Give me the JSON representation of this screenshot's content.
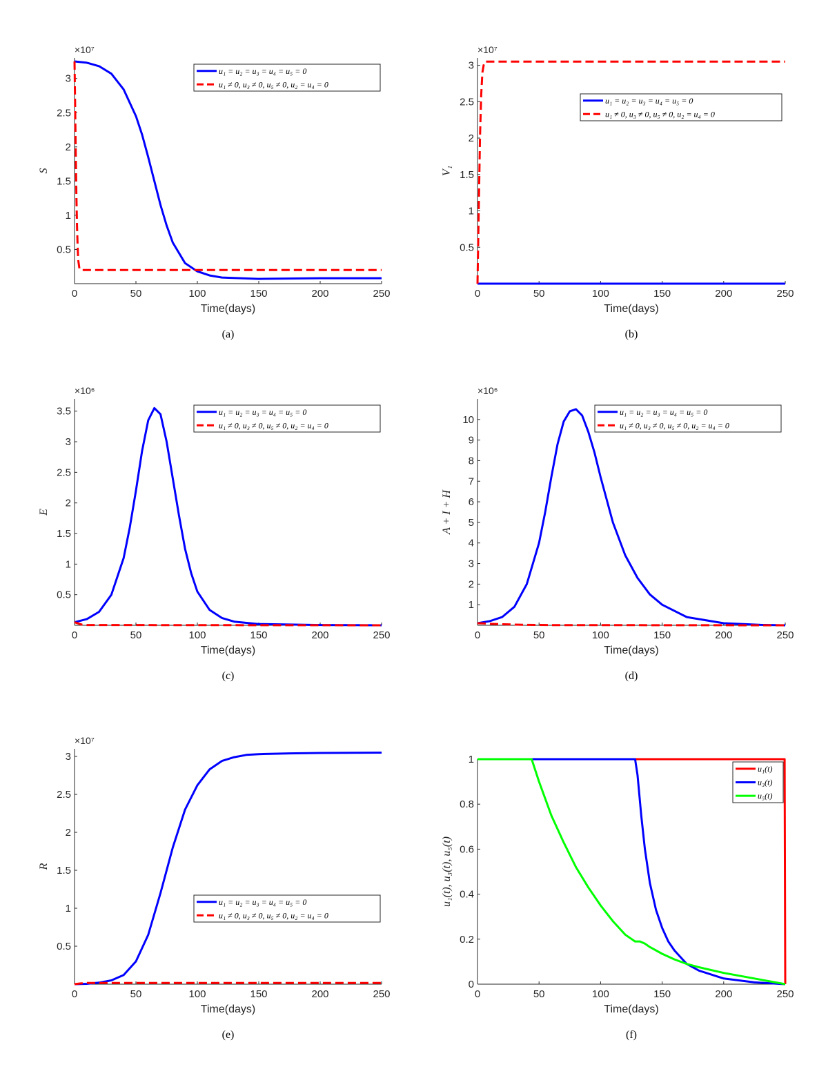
{
  "figure_title": "",
  "chart_data": [
    {
      "id": "a",
      "type": "line",
      "caption": "(a)",
      "xlabel": "Time(days)",
      "ylabel": "S",
      "yexponent": "×10⁷",
      "xlim": [
        0,
        250
      ],
      "ylim": [
        0,
        3.3
      ],
      "grid": false,
      "legend_position": "top-right",
      "xticks": [
        "0",
        "50",
        "100",
        "150",
        "200",
        "250"
      ],
      "yticks": [
        "0.5",
        "1",
        "1.5",
        "2",
        "2.5",
        "3"
      ],
      "series": [
        {
          "name": "u₁ = u₂ = u₃ = u₄ = u₅ = 0",
          "color": "#0000ff",
          "style": "solid",
          "x": [
            0,
            10,
            20,
            30,
            40,
            50,
            55,
            60,
            65,
            70,
            75,
            80,
            90,
            100,
            110,
            120,
            150,
            200,
            250
          ],
          "y": [
            3.25,
            3.23,
            3.18,
            3.07,
            2.84,
            2.45,
            2.18,
            1.85,
            1.5,
            1.15,
            0.85,
            0.6,
            0.3,
            0.18,
            0.12,
            0.09,
            0.07,
            0.08,
            0.08
          ]
        },
        {
          "name": "u₁ ≠ 0, u₃ ≠ 0, u₅ ≠ 0, u₂ = u₄ = 0",
          "color": "#ff0000",
          "style": "dashed",
          "x": [
            0,
            0.5,
            1,
            1.5,
            2,
            2.5,
            3,
            4,
            5,
            250
          ],
          "y": [
            3.25,
            2.6,
            1.9,
            1.3,
            0.85,
            0.55,
            0.35,
            0.22,
            0.2,
            0.2
          ]
        }
      ]
    },
    {
      "id": "b",
      "type": "line",
      "caption": "(b)",
      "xlabel": "Time(days)",
      "ylabel": "V₁",
      "yexponent": "×10⁷",
      "xlim": [
        0,
        250
      ],
      "ylim": [
        0,
        3.1
      ],
      "grid": false,
      "legend_position": "upper-right",
      "xticks": [
        "0",
        "50",
        "100",
        "150",
        "200",
        "250"
      ],
      "yticks": [
        "0.5",
        "1",
        "1.5",
        "2",
        "2.5",
        "3"
      ],
      "series": [
        {
          "name": "u₁ = u₂ = u₃ = u₄ = u₅ = 0",
          "color": "#0000ff",
          "style": "solid",
          "x": [
            0,
            250
          ],
          "y": [
            0,
            0
          ]
        },
        {
          "name": "u₁ ≠ 0, u₃ ≠ 0, u₅ ≠ 0, u₂ = u₄ = 0",
          "color": "#ff0000",
          "style": "dashed",
          "x": [
            0,
            1,
            2,
            3,
            4,
            5,
            6,
            250
          ],
          "y": [
            0,
            1.0,
            2.0,
            2.6,
            2.9,
            3.0,
            3.05,
            3.05
          ]
        }
      ]
    },
    {
      "id": "c",
      "type": "line",
      "caption": "(c)",
      "xlabel": "Time(days)",
      "ylabel": "E",
      "yexponent": "×10⁶",
      "xlim": [
        0,
        250
      ],
      "ylim": [
        0,
        3.7
      ],
      "grid": false,
      "legend_position": "top-right",
      "xticks": [
        "0",
        "50",
        "100",
        "150",
        "200",
        "250"
      ],
      "yticks": [
        "0.5",
        "1",
        "1.5",
        "2",
        "2.5",
        "3",
        "3.5"
      ],
      "series": [
        {
          "name": "u₁ = u₂ = u₃ = u₄ = u₅ = 0",
          "color": "#0000ff",
          "style": "solid",
          "x": [
            0,
            10,
            20,
            30,
            40,
            45,
            50,
            55,
            60,
            65,
            70,
            75,
            80,
            85,
            90,
            95,
            100,
            110,
            120,
            130,
            150,
            200,
            250
          ],
          "y": [
            0.05,
            0.1,
            0.22,
            0.5,
            1.1,
            1.6,
            2.2,
            2.85,
            3.35,
            3.55,
            3.45,
            3.0,
            2.4,
            1.8,
            1.25,
            0.85,
            0.55,
            0.25,
            0.12,
            0.06,
            0.02,
            0.005,
            0
          ]
        },
        {
          "name": "u₁ ≠ 0, u₃ ≠ 0, u₅ ≠ 0, u₂ = u₄ = 0",
          "color": "#ff0000",
          "style": "dashed",
          "x": [
            0,
            3,
            6,
            10,
            250
          ],
          "y": [
            0.05,
            0.03,
            0.01,
            0.005,
            0
          ]
        }
      ]
    },
    {
      "id": "d",
      "type": "line",
      "caption": "(d)",
      "xlabel": "Time(days)",
      "ylabel": "A + I + H",
      "yexponent": "×10⁶",
      "xlim": [
        0,
        250
      ],
      "ylim": [
        0,
        11
      ],
      "grid": false,
      "legend_position": "top-right",
      "xticks": [
        "0",
        "50",
        "100",
        "150",
        "200",
        "250"
      ],
      "yticks": [
        "1",
        "2",
        "3",
        "4",
        "5",
        "6",
        "7",
        "8",
        "9",
        "10"
      ],
      "series": [
        {
          "name": "u₁ = u₂ = u₃ = u₄ = u₅ = 0",
          "color": "#0000ff",
          "style": "solid",
          "x": [
            0,
            10,
            20,
            30,
            40,
            50,
            55,
            60,
            65,
            70,
            75,
            80,
            85,
            90,
            95,
            100,
            110,
            120,
            130,
            140,
            150,
            170,
            200,
            230,
            250
          ],
          "y": [
            0.1,
            0.2,
            0.4,
            0.9,
            2.0,
            4.0,
            5.5,
            7.2,
            8.8,
            9.9,
            10.4,
            10.5,
            10.2,
            9.4,
            8.4,
            7.2,
            5.0,
            3.4,
            2.3,
            1.5,
            1.0,
            0.4,
            0.1,
            0.02,
            0
          ]
        },
        {
          "name": "u₁ ≠ 0, u₃ ≠ 0, u₅ ≠ 0, u₂ = u₄ = 0",
          "color": "#ff0000",
          "style": "dashed",
          "x": [
            0,
            5,
            10,
            20,
            40,
            60,
            250
          ],
          "y": [
            0.1,
            0.09,
            0.07,
            0.05,
            0.02,
            0.01,
            0
          ]
        }
      ]
    },
    {
      "id": "e",
      "type": "line",
      "caption": "(e)",
      "xlabel": "Time(days)",
      "ylabel": "R",
      "yexponent": "×10⁷",
      "xlim": [
        0,
        250
      ],
      "ylim": [
        0,
        3.1
      ],
      "grid": false,
      "legend_position": "lower-right",
      "xticks": [
        "0",
        "50",
        "100",
        "150",
        "200",
        "250"
      ],
      "yticks": [
        "0.5",
        "1",
        "1.5",
        "2",
        "2.5",
        "3"
      ],
      "series": [
        {
          "name": "u₁ = u₂ = u₃ = u₄ = u₅ = 0",
          "color": "#0000ff",
          "style": "solid",
          "x": [
            0,
            10,
            20,
            30,
            40,
            50,
            60,
            70,
            80,
            90,
            100,
            110,
            120,
            130,
            140,
            150,
            175,
            200,
            250
          ],
          "y": [
            0,
            0.005,
            0.02,
            0.05,
            0.12,
            0.3,
            0.65,
            1.2,
            1.8,
            2.3,
            2.62,
            2.83,
            2.94,
            2.99,
            3.02,
            3.03,
            3.04,
            3.045,
            3.05
          ]
        },
        {
          "name": "u₁ ≠ 0, u₃ ≠ 0, u₅ ≠ 0, u₂ = u₄ = 0",
          "color": "#ff0000",
          "style": "dashed",
          "x": [
            0,
            5,
            10,
            250
          ],
          "y": [
            0,
            0.01,
            0.015,
            0.015
          ]
        }
      ]
    },
    {
      "id": "f",
      "type": "line",
      "caption": "(f)",
      "xlabel": "Time(days)",
      "ylabel": "u₁(t), u₃(t), u₅(t)",
      "yexponent": "",
      "xlim": [
        0,
        250
      ],
      "ylim": [
        0,
        1
      ],
      "grid": false,
      "legend_position": "top-right",
      "xticks": [
        "0",
        "50",
        "100",
        "150",
        "200",
        "250"
      ],
      "yticks": [
        "0",
        "0.2",
        "0.4",
        "0.6",
        "0.8",
        "1"
      ],
      "series": [
        {
          "name": "u₁(t)",
          "color": "#ff0000",
          "style": "solid",
          "x": [
            0,
            249.5,
            250
          ],
          "y": [
            1,
            1,
            0
          ]
        },
        {
          "name": "u₃(t)",
          "color": "#0000ff",
          "style": "solid",
          "x": [
            0,
            128,
            130,
            133,
            136,
            140,
            145,
            150,
            155,
            160,
            170,
            180,
            200,
            225,
            250
          ],
          "y": [
            1,
            1,
            0.93,
            0.75,
            0.6,
            0.45,
            0.33,
            0.25,
            0.19,
            0.15,
            0.09,
            0.06,
            0.025,
            0.008,
            0
          ]
        },
        {
          "name": "u₅(t)",
          "color": "#00ff00",
          "style": "solid",
          "x": [
            0,
            44,
            50,
            60,
            70,
            80,
            90,
            100,
            110,
            120,
            128,
            132,
            136,
            140,
            150,
            160,
            170,
            180,
            200,
            225,
            250
          ],
          "y": [
            1,
            1,
            0.9,
            0.75,
            0.63,
            0.52,
            0.43,
            0.35,
            0.28,
            0.22,
            0.19,
            0.19,
            0.18,
            0.165,
            0.135,
            0.11,
            0.09,
            0.075,
            0.05,
            0.025,
            0
          ]
        }
      ]
    }
  ]
}
